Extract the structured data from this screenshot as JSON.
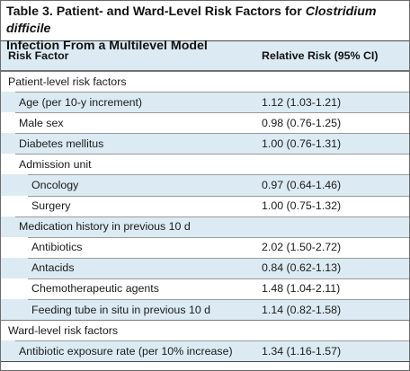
{
  "table": {
    "caption_prefix": "Table 3. Patient- and Ward-Level Risk Factors for ",
    "caption_italic": "Clostridium difficile",
    "caption_suffix": "Infection From a Multilevel Model",
    "columns": [
      "Risk Factor",
      "Relative Risk (95% CI)"
    ],
    "rows": [
      {
        "factor": "Patient-level risk factors",
        "rr": "",
        "level": 0,
        "shaded": false,
        "sep": "full"
      },
      {
        "factor": "Age (per 10-y increment)",
        "rr": "1.12 (1.03-1.21)",
        "level": 1,
        "shaded": true,
        "sep": "l1"
      },
      {
        "factor": "Male sex",
        "rr": "0.98 (0.76-1.25)",
        "level": 1,
        "shaded": false,
        "sep": "l1"
      },
      {
        "factor": "Diabetes mellitus",
        "rr": "1.00 (0.76-1.31)",
        "level": 1,
        "shaded": true,
        "sep": "l1"
      },
      {
        "factor": "Admission unit",
        "rr": "",
        "level": 1,
        "shaded": false,
        "sep": "l1"
      },
      {
        "factor": "Oncology",
        "rr": "0.97 (0.64-1.46)",
        "level": 2,
        "shaded": true,
        "sep": "l2"
      },
      {
        "factor": "Surgery",
        "rr": "1.00 (0.75-1.32)",
        "level": 2,
        "shaded": false,
        "sep": "l2"
      },
      {
        "factor": "Medication history in previous 10 d",
        "rr": "",
        "level": 1,
        "shaded": true,
        "sep": "l1"
      },
      {
        "factor": "Antibiotics",
        "rr": "2.02 (1.50-2.72)",
        "level": 2,
        "shaded": false,
        "sep": "l2"
      },
      {
        "factor": "Antacids",
        "rr": "0.84 (0.62-1.13)",
        "level": 2,
        "shaded": true,
        "sep": "l2"
      },
      {
        "factor": "Chemotherapeutic agents",
        "rr": "1.48 (1.04-2.11)",
        "level": 2,
        "shaded": false,
        "sep": "l2"
      },
      {
        "factor": "Feeding tube in situ in previous 10 d",
        "rr": "1.14 (0.82-1.58)",
        "level": 2,
        "shaded": true,
        "sep": "l2"
      },
      {
        "factor": "Ward-level risk factors",
        "rr": "",
        "level": 0,
        "shaded": false,
        "sep": "full"
      },
      {
        "factor": "Antibiotic exposure rate (per 10% increase)",
        "rr": "1.34 (1.16-1.57)",
        "level": 1,
        "shaded": true,
        "sep": "l1"
      }
    ]
  },
  "colors": {
    "row_shade": "#dcebf3",
    "rule": "#4a4a4a"
  }
}
